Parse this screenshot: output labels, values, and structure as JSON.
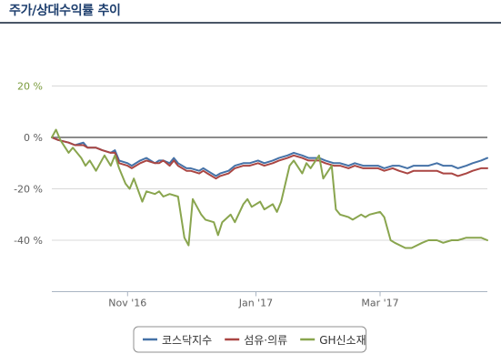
{
  "header": {
    "title": "주가/상대수익률 추이"
  },
  "chart_data": {
    "type": "line",
    "title": "주가/상대수익률 추이",
    "xlabel": "",
    "ylabel": "",
    "x_range": [
      "2016-09-26",
      "2017-04-21"
    ],
    "x_ticks": [
      {
        "date": "2016-11-01",
        "label": "Nov '16"
      },
      {
        "date": "2017-01-01",
        "label": "Jan '17"
      },
      {
        "date": "2017-03-01",
        "label": "Mar '17"
      }
    ],
    "y_ticks": [
      {
        "value": 20,
        "label": "20 %"
      },
      {
        "value": 0,
        "label": "0 %"
      },
      {
        "value": -20,
        "label": "-20 %"
      },
      {
        "value": -40,
        "label": "-40 %"
      }
    ],
    "ylim": [
      -60,
      35
    ],
    "grid": "horizontal",
    "legend_position": "bottom-center",
    "series": [
      {
        "name": "코스닥지수",
        "color": "#4572a7",
        "points": [
          [
            "2016-09-26",
            0
          ],
          [
            "2016-09-29",
            -1
          ],
          [
            "2016-10-04",
            -2
          ],
          [
            "2016-10-07",
            -3
          ],
          [
            "2016-10-11",
            -2
          ],
          [
            "2016-10-13",
            -4
          ],
          [
            "2016-10-17",
            -4
          ],
          [
            "2016-10-20",
            -5
          ],
          [
            "2016-10-24",
            -6
          ],
          [
            "2016-10-26",
            -5
          ],
          [
            "2016-10-28",
            -9
          ],
          [
            "2016-11-01",
            -10
          ],
          [
            "2016-11-03",
            -11
          ],
          [
            "2016-11-07",
            -9
          ],
          [
            "2016-11-10",
            -8
          ],
          [
            "2016-11-14",
            -10
          ],
          [
            "2016-11-16",
            -9
          ],
          [
            "2016-11-18",
            -9
          ],
          [
            "2016-11-21",
            -10
          ],
          [
            "2016-11-23",
            -8
          ],
          [
            "2016-11-25",
            -10
          ],
          [
            "2016-11-29",
            -12
          ],
          [
            "2016-12-01",
            -12
          ],
          [
            "2016-12-05",
            -13
          ],
          [
            "2016-12-07",
            -12
          ],
          [
            "2016-12-09",
            -13
          ],
          [
            "2016-12-13",
            -15
          ],
          [
            "2016-12-15",
            -14
          ],
          [
            "2016-12-19",
            -13
          ],
          [
            "2016-12-22",
            -11
          ],
          [
            "2016-12-26",
            -10
          ],
          [
            "2016-12-29",
            -10
          ],
          [
            "2017-01-02",
            -9
          ],
          [
            "2017-01-05",
            -10
          ],
          [
            "2017-01-09",
            -9
          ],
          [
            "2017-01-12",
            -8
          ],
          [
            "2017-01-16",
            -7
          ],
          [
            "2017-01-19",
            -6
          ],
          [
            "2017-01-23",
            -7
          ],
          [
            "2017-01-26",
            -8
          ],
          [
            "2017-01-31",
            -8
          ],
          [
            "2017-02-03",
            -9
          ],
          [
            "2017-02-07",
            -10
          ],
          [
            "2017-02-10",
            -10
          ],
          [
            "2017-02-14",
            -11
          ],
          [
            "2017-02-17",
            -10
          ],
          [
            "2017-02-21",
            -11
          ],
          [
            "2017-02-24",
            -11
          ],
          [
            "2017-02-28",
            -11
          ],
          [
            "2017-03-03",
            -12
          ],
          [
            "2017-03-07",
            -11
          ],
          [
            "2017-03-10",
            -11
          ],
          [
            "2017-03-14",
            -12
          ],
          [
            "2017-03-17",
            -11
          ],
          [
            "2017-03-21",
            -11
          ],
          [
            "2017-03-24",
            -11
          ],
          [
            "2017-03-28",
            -10
          ],
          [
            "2017-03-31",
            -11
          ],
          [
            "2017-04-04",
            -11
          ],
          [
            "2017-04-07",
            -12
          ],
          [
            "2017-04-11",
            -11
          ],
          [
            "2017-04-14",
            -10
          ],
          [
            "2017-04-18",
            -9
          ],
          [
            "2017-04-21",
            -8
          ]
        ]
      },
      {
        "name": "섬유·의류",
        "color": "#aa4643",
        "points": [
          [
            "2016-09-26",
            0
          ],
          [
            "2016-09-29",
            -1
          ],
          [
            "2016-10-04",
            -2
          ],
          [
            "2016-10-07",
            -3
          ],
          [
            "2016-10-11",
            -3
          ],
          [
            "2016-10-13",
            -4
          ],
          [
            "2016-10-17",
            -4
          ],
          [
            "2016-10-20",
            -5
          ],
          [
            "2016-10-24",
            -6
          ],
          [
            "2016-10-26",
            -6
          ],
          [
            "2016-10-28",
            -10
          ],
          [
            "2016-11-01",
            -11
          ],
          [
            "2016-11-03",
            -12
          ],
          [
            "2016-11-07",
            -10
          ],
          [
            "2016-11-10",
            -9
          ],
          [
            "2016-11-14",
            -10
          ],
          [
            "2016-11-16",
            -10
          ],
          [
            "2016-11-18",
            -9
          ],
          [
            "2016-11-21",
            -11
          ],
          [
            "2016-11-23",
            -9
          ],
          [
            "2016-11-25",
            -11
          ],
          [
            "2016-11-29",
            -13
          ],
          [
            "2016-12-01",
            -13
          ],
          [
            "2016-12-05",
            -14
          ],
          [
            "2016-12-07",
            -13
          ],
          [
            "2016-12-09",
            -14
          ],
          [
            "2016-12-13",
            -16
          ],
          [
            "2016-12-15",
            -15
          ],
          [
            "2016-12-19",
            -14
          ],
          [
            "2016-12-22",
            -12
          ],
          [
            "2016-12-26",
            -11
          ],
          [
            "2016-12-29",
            -11
          ],
          [
            "2017-01-02",
            -10
          ],
          [
            "2017-01-05",
            -11
          ],
          [
            "2017-01-09",
            -10
          ],
          [
            "2017-01-12",
            -9
          ],
          [
            "2017-01-16",
            -8
          ],
          [
            "2017-01-19",
            -7
          ],
          [
            "2017-01-23",
            -8
          ],
          [
            "2017-01-26",
            -9
          ],
          [
            "2017-01-31",
            -9
          ],
          [
            "2017-02-03",
            -10
          ],
          [
            "2017-02-07",
            -11
          ],
          [
            "2017-02-10",
            -11
          ],
          [
            "2017-02-14",
            -12
          ],
          [
            "2017-02-17",
            -11
          ],
          [
            "2017-02-21",
            -12
          ],
          [
            "2017-02-24",
            -12
          ],
          [
            "2017-02-28",
            -12
          ],
          [
            "2017-03-03",
            -13
          ],
          [
            "2017-03-07",
            -12
          ],
          [
            "2017-03-10",
            -13
          ],
          [
            "2017-03-14",
            -14
          ],
          [
            "2017-03-17",
            -13
          ],
          [
            "2017-03-21",
            -13
          ],
          [
            "2017-03-24",
            -13
          ],
          [
            "2017-03-28",
            -13
          ],
          [
            "2017-03-31",
            -14
          ],
          [
            "2017-04-04",
            -14
          ],
          [
            "2017-04-07",
            -15
          ],
          [
            "2017-04-11",
            -14
          ],
          [
            "2017-04-14",
            -13
          ],
          [
            "2017-04-18",
            -12
          ],
          [
            "2017-04-21",
            -12
          ]
        ]
      },
      {
        "name": "GH신소재",
        "color": "#89a54e",
        "points": [
          [
            "2016-09-26",
            0
          ],
          [
            "2016-09-28",
            3
          ],
          [
            "2016-09-30",
            -1
          ],
          [
            "2016-10-04",
            -6
          ],
          [
            "2016-10-06",
            -4
          ],
          [
            "2016-10-10",
            -8
          ],
          [
            "2016-10-12",
            -11
          ],
          [
            "2016-10-14",
            -9
          ],
          [
            "2016-10-17",
            -13
          ],
          [
            "2016-10-19",
            -10
          ],
          [
            "2016-10-21",
            -7
          ],
          [
            "2016-10-24",
            -11
          ],
          [
            "2016-10-26",
            -7
          ],
          [
            "2016-10-28",
            -12
          ],
          [
            "2016-10-31",
            -18
          ],
          [
            "2016-11-02",
            -20
          ],
          [
            "2016-11-04",
            -16
          ],
          [
            "2016-11-08",
            -25
          ],
          [
            "2016-11-10",
            -21
          ],
          [
            "2016-11-14",
            -22
          ],
          [
            "2016-11-16",
            -21
          ],
          [
            "2016-11-18",
            -23
          ],
          [
            "2016-11-21",
            -22
          ],
          [
            "2016-11-25",
            -23
          ],
          [
            "2016-11-28",
            -39
          ],
          [
            "2016-11-30",
            -42
          ],
          [
            "2016-12-02",
            -24
          ],
          [
            "2016-12-06",
            -30
          ],
          [
            "2016-12-08",
            -32
          ],
          [
            "2016-12-12",
            -33
          ],
          [
            "2016-12-14",
            -38
          ],
          [
            "2016-12-16",
            -33
          ],
          [
            "2016-12-20",
            -30
          ],
          [
            "2016-12-22",
            -33
          ],
          [
            "2016-12-26",
            -26
          ],
          [
            "2016-12-28",
            -24
          ],
          [
            "2016-12-30",
            -27
          ],
          [
            "2017-01-03",
            -25
          ],
          [
            "2017-01-05",
            -28
          ],
          [
            "2017-01-09",
            -26
          ],
          [
            "2017-01-11",
            -29
          ],
          [
            "2017-01-13",
            -25
          ],
          [
            "2017-01-17",
            -11
          ],
          [
            "2017-01-19",
            -9
          ],
          [
            "2017-01-23",
            -14
          ],
          [
            "2017-01-25",
            -10
          ],
          [
            "2017-01-27",
            -12
          ],
          [
            "2017-01-31",
            -7
          ],
          [
            "2017-02-02",
            -16
          ],
          [
            "2017-02-06",
            -11
          ],
          [
            "2017-02-08",
            -28
          ],
          [
            "2017-02-10",
            -30
          ],
          [
            "2017-02-14",
            -31
          ],
          [
            "2017-02-16",
            -32
          ],
          [
            "2017-02-20",
            -30
          ],
          [
            "2017-02-22",
            -31
          ],
          [
            "2017-02-24",
            -30
          ],
          [
            "2017-03-01",
            -29
          ],
          [
            "2017-03-03",
            -31
          ],
          [
            "2017-03-06",
            -40
          ],
          [
            "2017-03-08",
            -41
          ],
          [
            "2017-03-13",
            -43
          ],
          [
            "2017-03-16",
            -43
          ],
          [
            "2017-03-21",
            -41
          ],
          [
            "2017-03-24",
            -40
          ],
          [
            "2017-03-28",
            -40
          ],
          [
            "2017-03-31",
            -41
          ],
          [
            "2017-04-04",
            -40
          ],
          [
            "2017-04-07",
            -40
          ],
          [
            "2017-04-11",
            -39
          ],
          [
            "2017-04-14",
            -39
          ],
          [
            "2017-04-18",
            -39
          ],
          [
            "2017-04-21",
            -40
          ]
        ]
      }
    ]
  }
}
